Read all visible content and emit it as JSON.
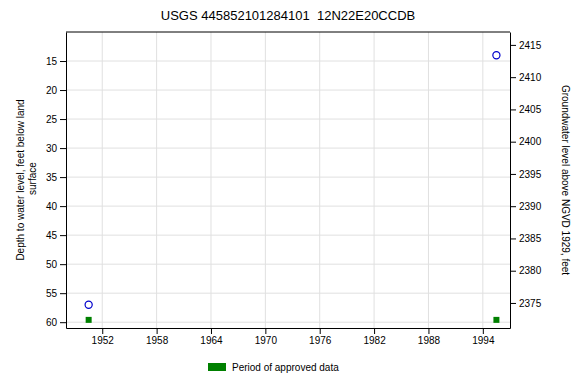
{
  "chart_data": {
    "type": "scatter",
    "title": "USGS 445852101284101  12N22E20CCDB",
    "ylabel": "Depth to water level, feet below land\n surface",
    "y2label": "Groundwater level above NGVD 1929, feet",
    "x": [
      1950.5,
      1995.5
    ],
    "series": [
      {
        "values": [
          57.0,
          14.0
        ],
        "color": "#0000cc",
        "marker": "circle"
      },
      {
        "name": "Period of approved data",
        "values": [
          59.6,
          59.6
        ],
        "color": "#008000",
        "marker": "square"
      }
    ],
    "xlim": [
      1948.0,
      1997.0
    ],
    "xticks": [
      1952,
      1958,
      1964,
      1970,
      1976,
      1982,
      1988,
      1994
    ],
    "ylim": [
      61.0,
      10.0
    ],
    "yticks": [
      15,
      20,
      25,
      30,
      35,
      40,
      45,
      50,
      55,
      60
    ],
    "y2lim": [
      2371.12,
      2417.0
    ],
    "y2ticks": [
      2375,
      2380,
      2385,
      2390,
      2395,
      2400,
      2405,
      2410,
      2415
    ],
    "grid": true,
    "legend": "bottom"
  }
}
